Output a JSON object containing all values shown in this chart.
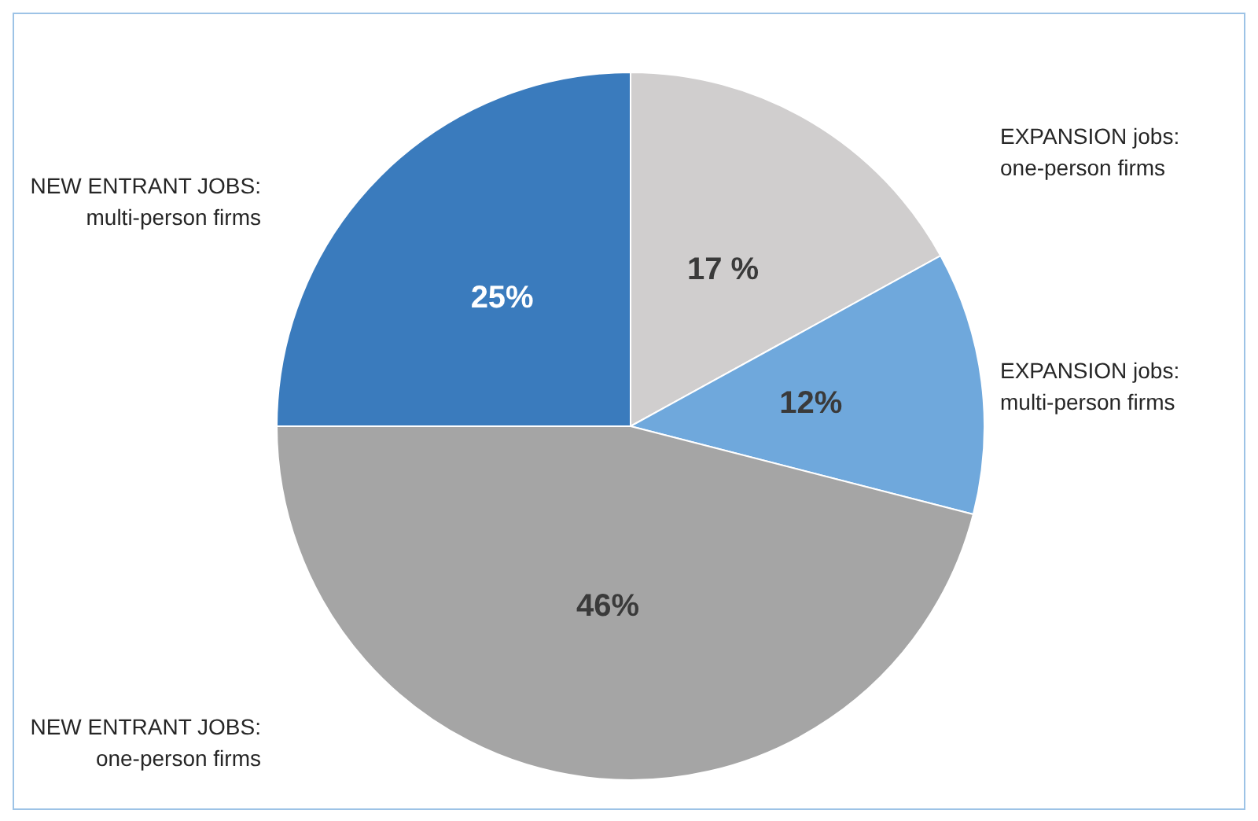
{
  "chart_data": {
    "type": "pie",
    "categories": [
      "EXPANSION jobs: one-person firms",
      "EXPANSION jobs: multi-person firms",
      "NEW ENTRANT JOBS: one-person firms",
      "NEW ENTRANT JOBS: multi-person firms"
    ],
    "values": [
      17,
      12,
      46,
      25
    ],
    "colors": [
      "#d0cece",
      "#6fa8dc",
      "#a5a5a5",
      "#3a7bbd"
    ],
    "value_labels": [
      "17 %",
      "12%",
      "46%",
      "25%"
    ]
  }
}
